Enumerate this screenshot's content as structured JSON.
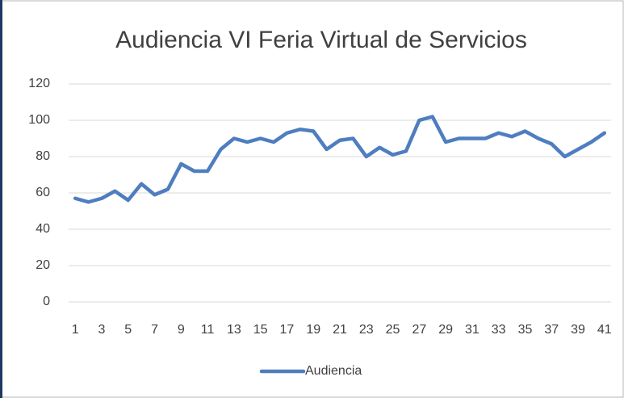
{
  "chart_data": {
    "type": "line",
    "title": "Audiencia VI Feria Virtual de Servicios",
    "categories": [
      "1",
      null,
      "3",
      null,
      "5",
      null,
      "7",
      null,
      "9",
      null,
      "11",
      null,
      "13",
      null,
      "15",
      null,
      "17",
      null,
      "19",
      null,
      "21",
      null,
      "23",
      null,
      "25",
      null,
      "27",
      null,
      "29",
      null,
      "31",
      null,
      "33",
      null,
      "35",
      null,
      "37",
      null,
      "39",
      null,
      "41"
    ],
    "series": [
      {
        "name": "Audiencia",
        "color": "#4e7ebf",
        "values": [
          57,
          55,
          57,
          61,
          56,
          65,
          59,
          62,
          76,
          72,
          72,
          84,
          90,
          88,
          90,
          88,
          93,
          95,
          94,
          84,
          89,
          90,
          80,
          85,
          81,
          83,
          100,
          102,
          88,
          90,
          90,
          90,
          93,
          91,
          94,
          90,
          87,
          80,
          84,
          88,
          93
        ]
      }
    ],
    "ylim": [
      0,
      120
    ],
    "yticks": [
      0,
      20,
      40,
      60,
      80,
      100,
      120
    ],
    "grid": true,
    "legend": "bottom"
  }
}
